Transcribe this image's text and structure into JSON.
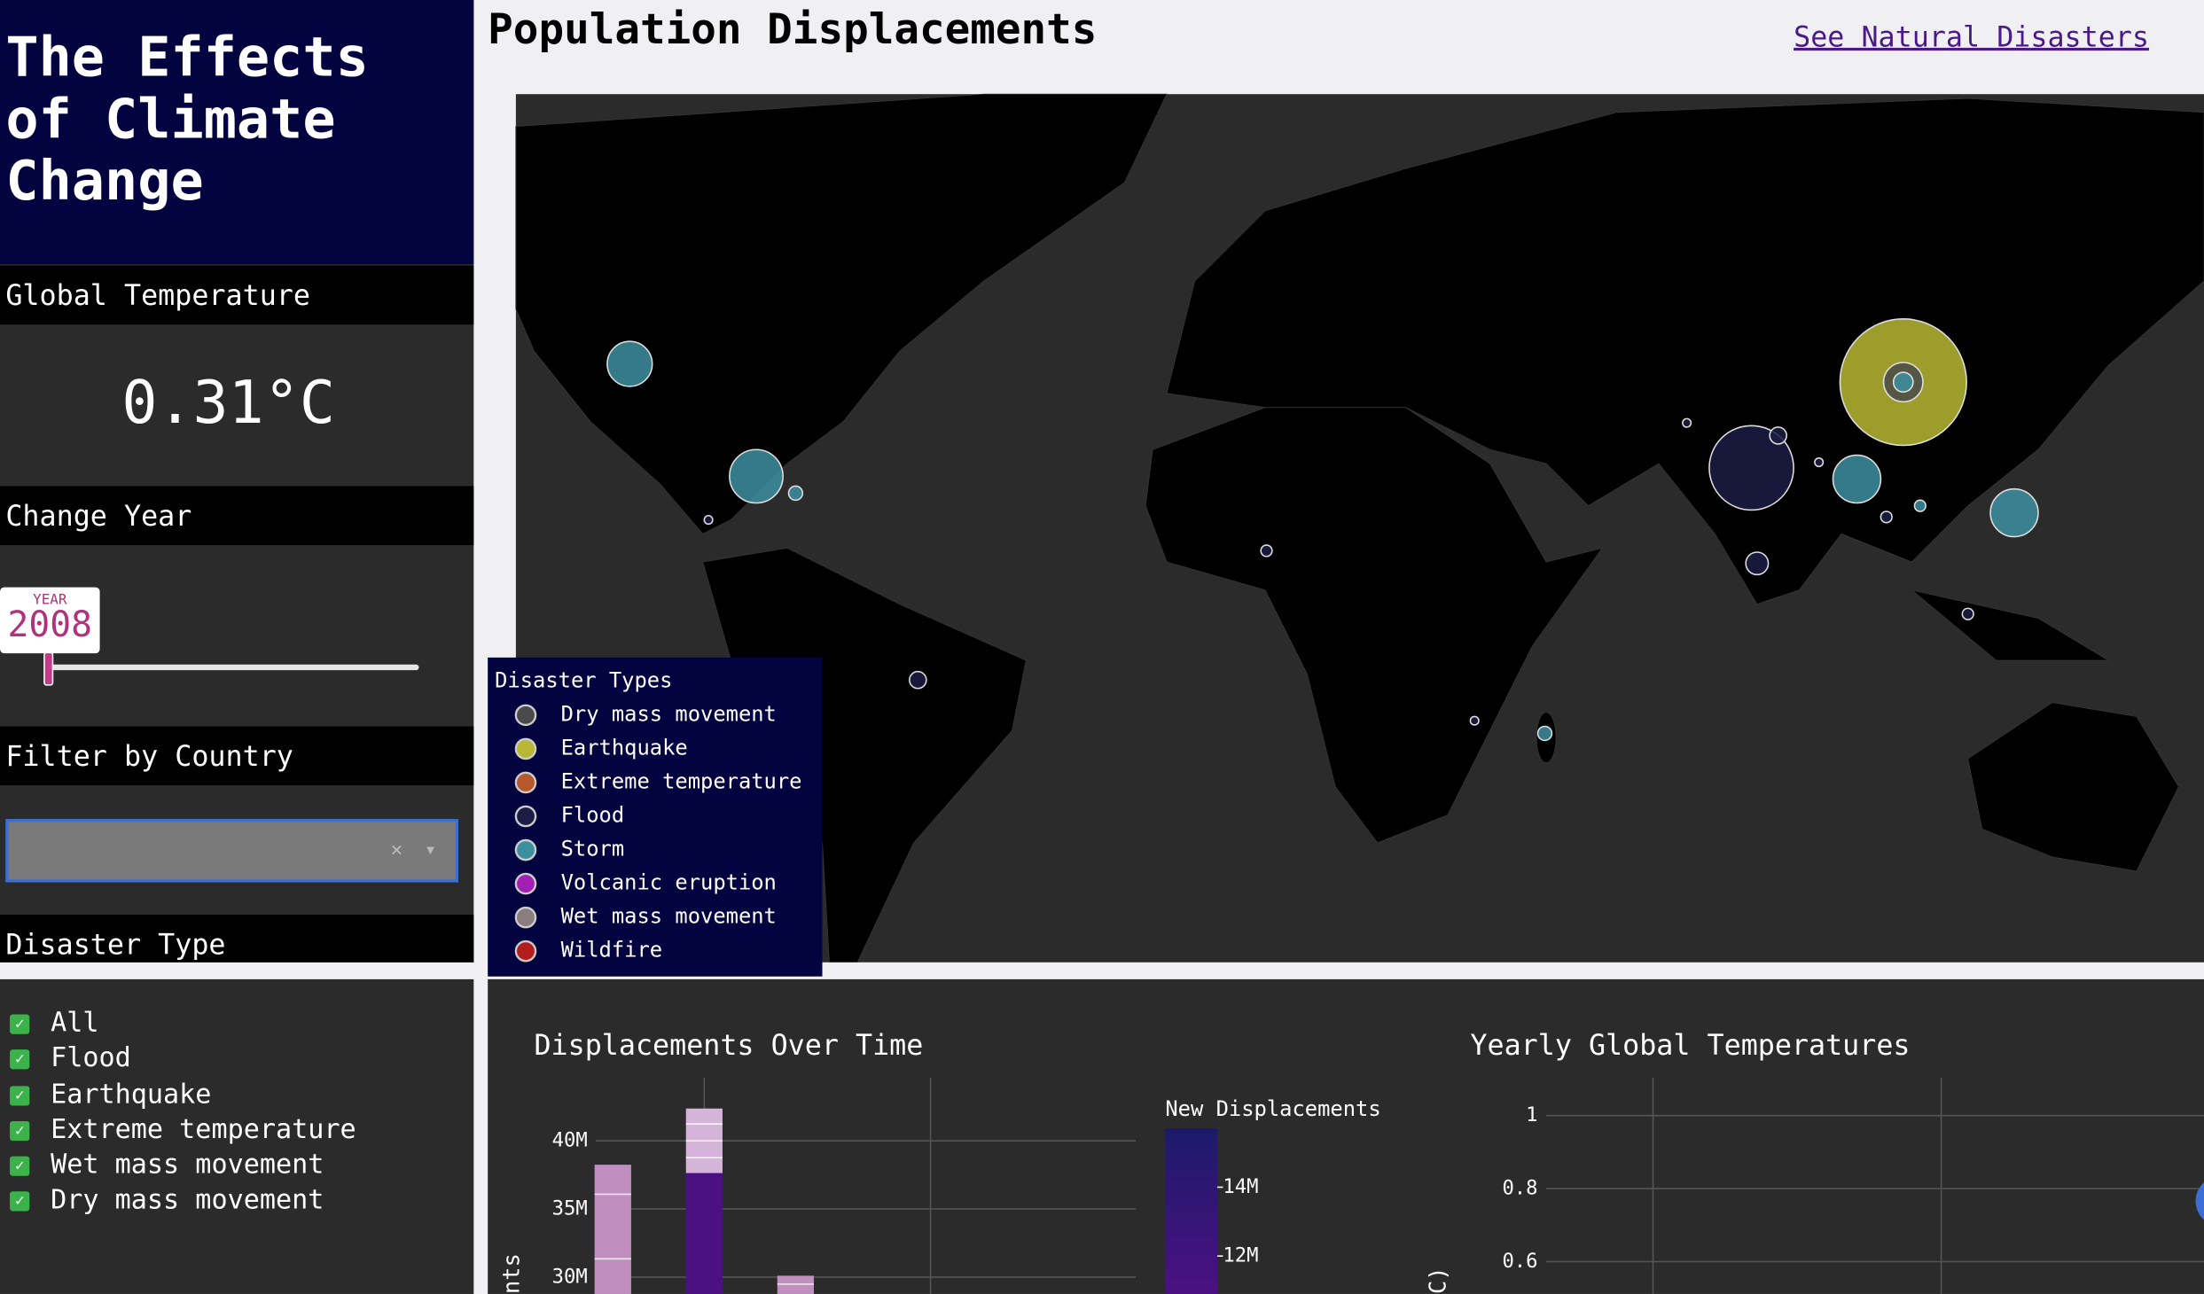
{
  "sidebar": {
    "title": "The Effects of Climate Change",
    "temperature": {
      "heading": "Global Temperature",
      "value": "0.31°C"
    },
    "year": {
      "heading": "Change Year",
      "label": "YEAR",
      "value": "2008"
    },
    "country": {
      "heading": "Filter by Country"
    },
    "disaster": {
      "heading": "Disaster Type",
      "options": [
        "All",
        "Flood",
        "Earthquake",
        "Extreme temperature",
        "Wet mass movement",
        "Dry mass movement"
      ]
    }
  },
  "header": {
    "title": "Population Displacements",
    "link": "See Natural Disasters"
  },
  "legend": {
    "title": "Disaster Types",
    "items": [
      {
        "name": "Dry mass movement",
        "color": "#4a4a4a"
      },
      {
        "name": "Earthquake",
        "color": "#b8b834"
      },
      {
        "name": "Extreme temperature",
        "color": "#b5582a"
      },
      {
        "name": "Flood",
        "color": "#1c1c44"
      },
      {
        "name": "Storm",
        "color": "#3d8fa0"
      },
      {
        "name": "Volcanic eruption",
        "color": "#a21fb5"
      },
      {
        "name": "Wet mass movement",
        "color": "#8a7d7d"
      },
      {
        "name": "Wildfire",
        "color": "#b31d1d"
      }
    ]
  },
  "charts": [
    {
      "title": "Displacements Over Time",
      "y_label": "nts",
      "yticks": [
        {
          "value": 40000000,
          "label": "40M"
        },
        {
          "value": 35000000,
          "label": "35M"
        },
        {
          "value": 30000000,
          "label": "30M"
        }
      ],
      "colorbar": {
        "title": "New Displacements",
        "ticks": [
          {
            "value": 14000000,
            "label": "14M"
          },
          {
            "value": 12000000,
            "label": "12M"
          }
        ]
      }
    },
    {
      "title": "Yearly Global Temperatures",
      "y_label": "C)",
      "yticks": [
        1,
        0.8,
        0.6
      ]
    }
  ]
}
